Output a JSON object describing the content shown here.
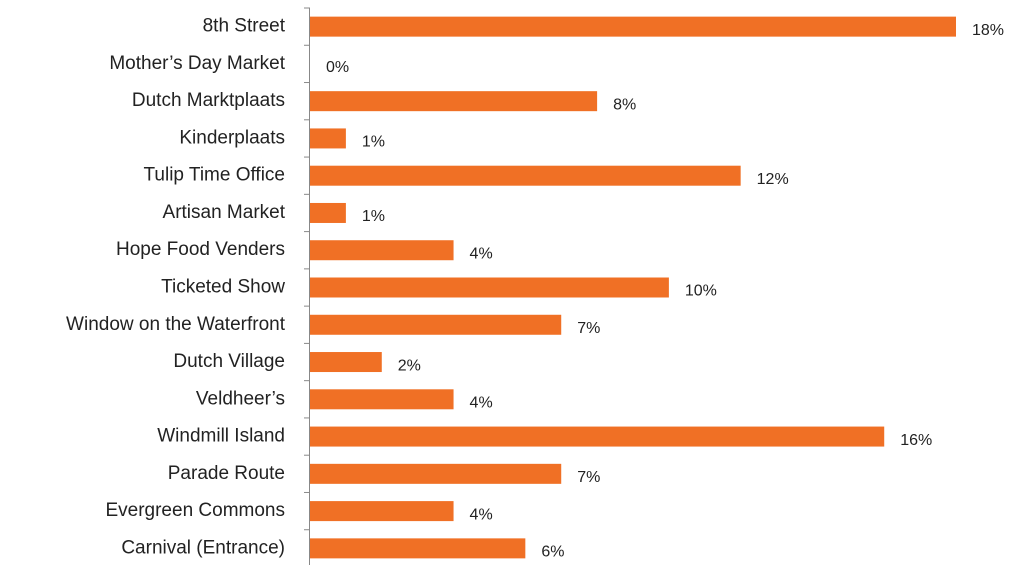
{
  "chart_data": {
    "type": "bar",
    "orientation": "horizontal",
    "categories": [
      "8th Street",
      "Mother’s Day Market",
      "Dutch Marktplaats",
      "Kinderplaats",
      "Tulip Time Office",
      "Artisan Market",
      "Hope Food Venders",
      "Ticketed Show",
      "Window on the Waterfront",
      "Dutch Village",
      "Veldheer’s",
      "Windmill Island",
      "Parade Route",
      "Evergreen Commons",
      "Carnival (Entrance)"
    ],
    "values": [
      18,
      0,
      8,
      1,
      12,
      1,
      4,
      10,
      7,
      2,
      4,
      16,
      7,
      4,
      6
    ],
    "value_labels": [
      "18%",
      "0%",
      "8%",
      "1%",
      "12%",
      "1%",
      "4%",
      "10%",
      "7%",
      "2%",
      "4%",
      "16%",
      "7%",
      "4%",
      "6%"
    ],
    "color": "#f07025",
    "xlim": [
      0,
      18
    ]
  }
}
